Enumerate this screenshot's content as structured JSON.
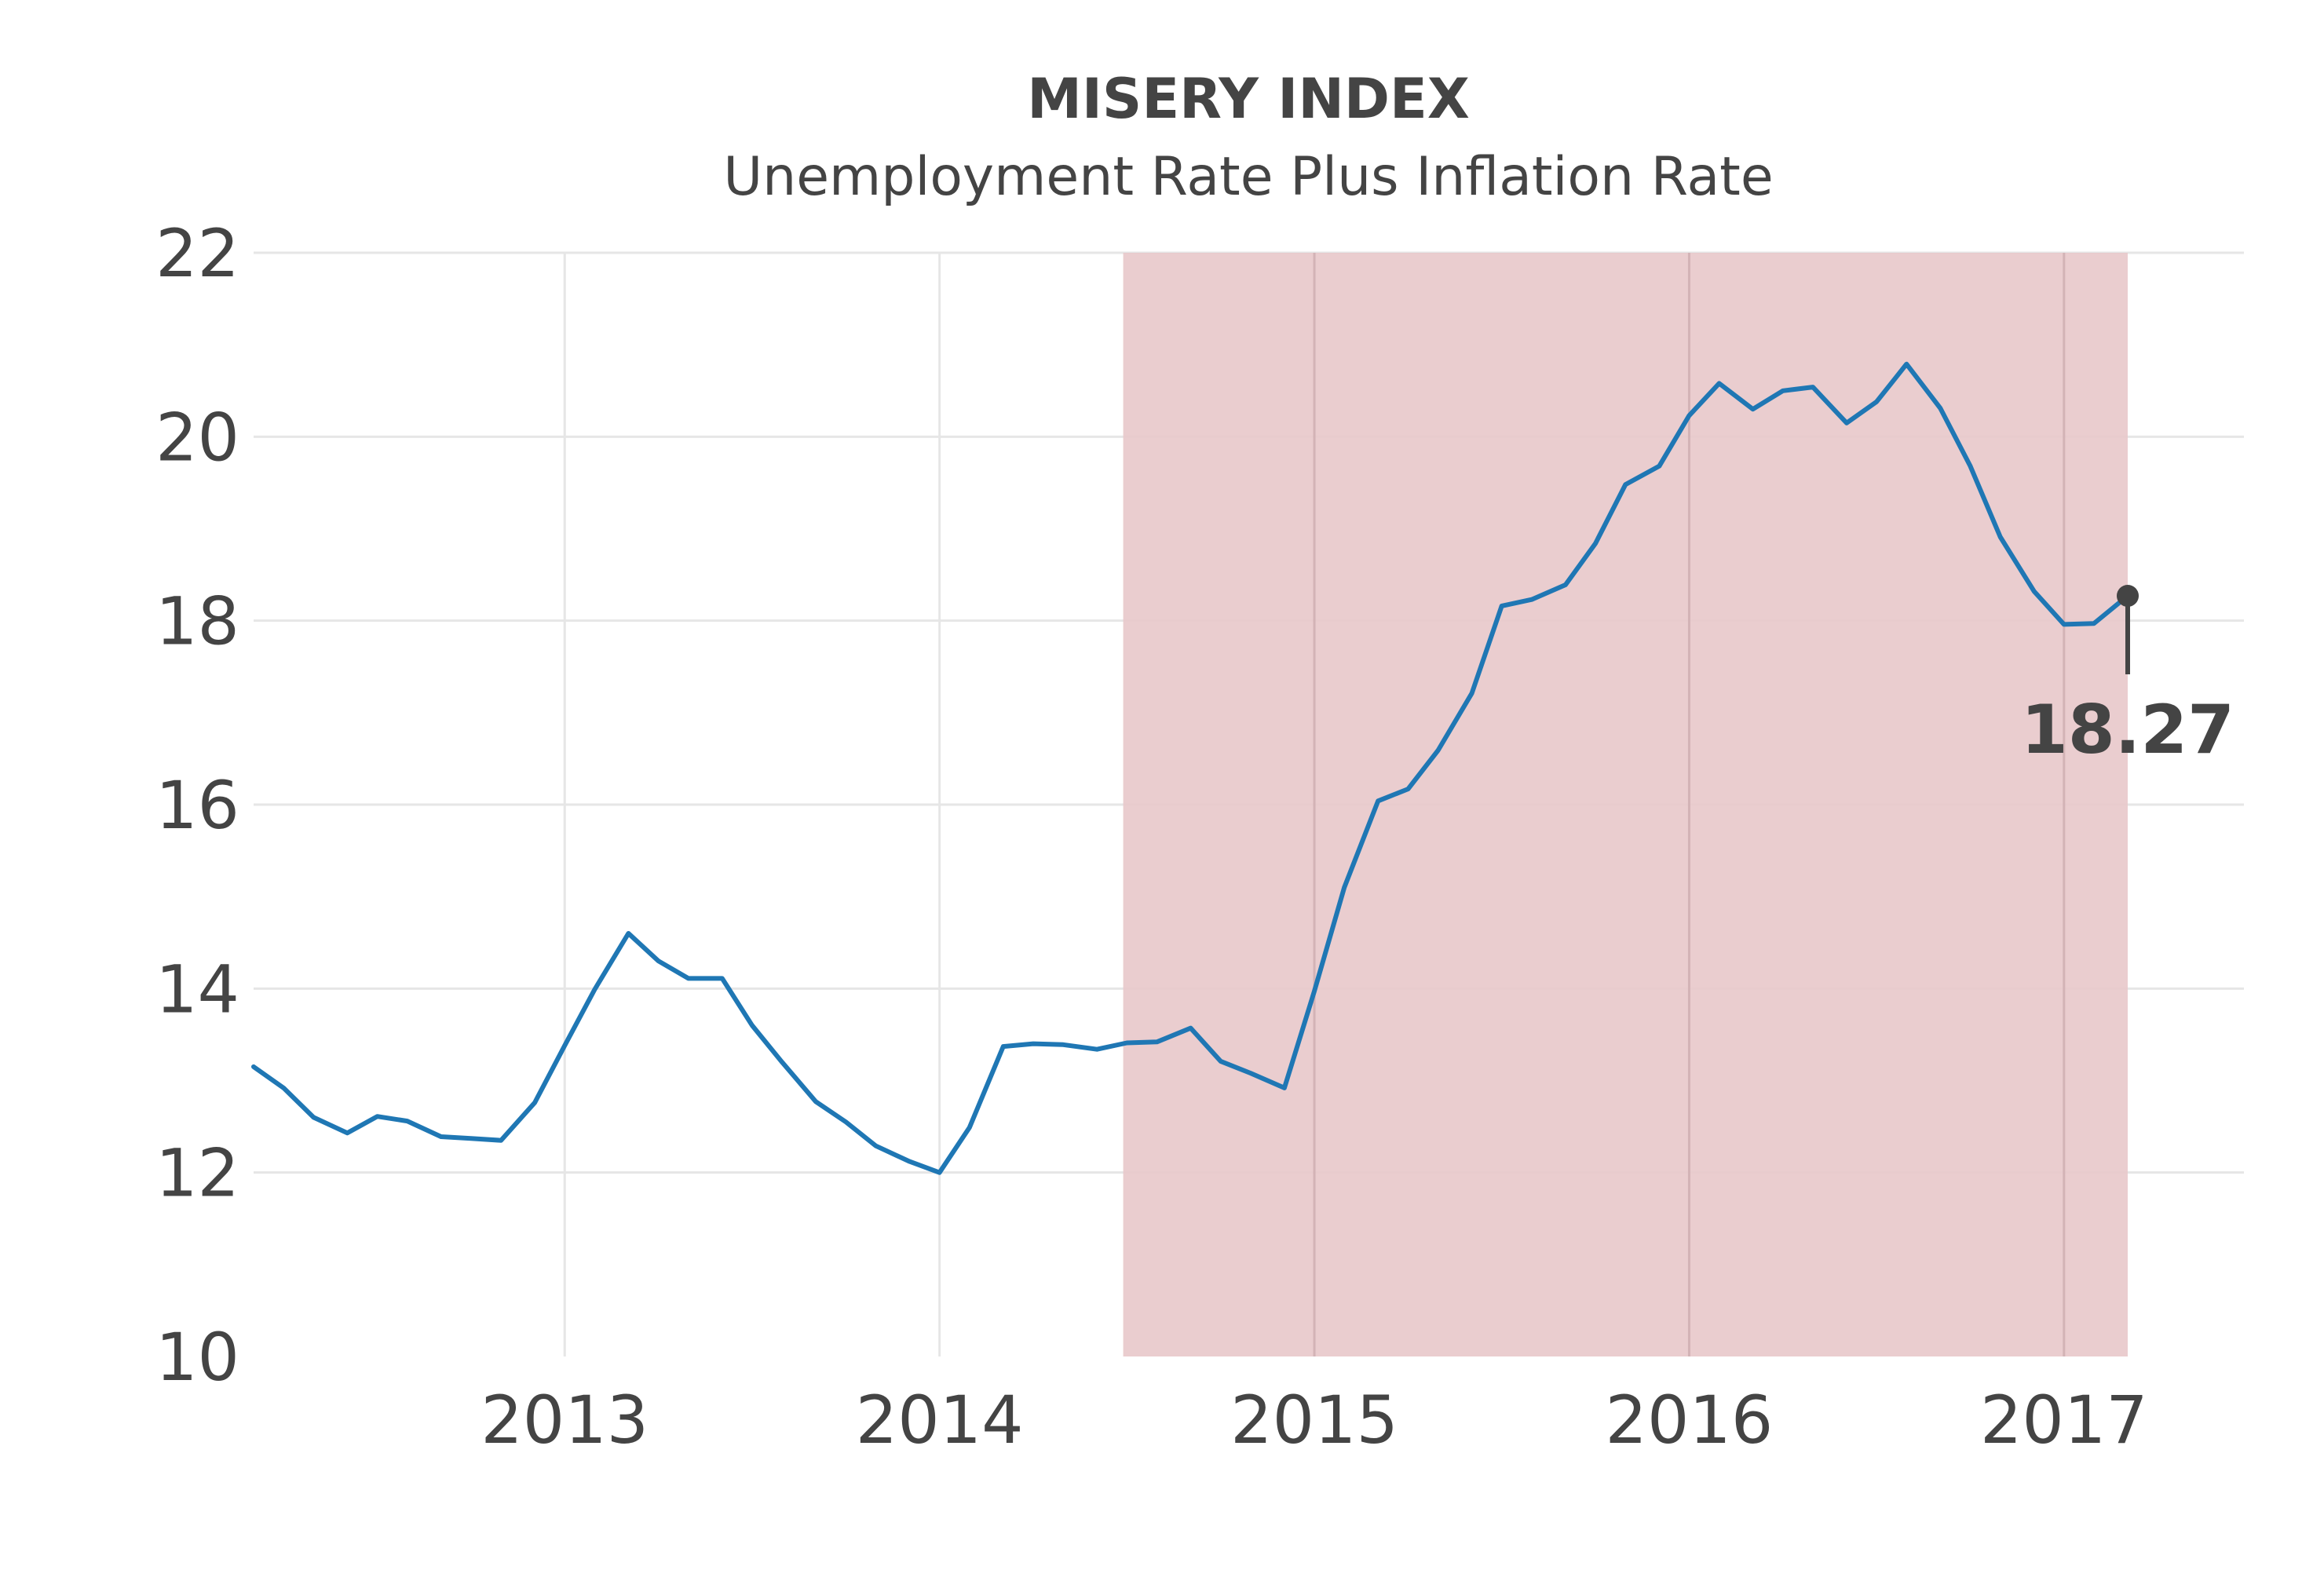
{
  "chart_data": {
    "type": "line",
    "title": "MISERY INDEX",
    "subtitle": "Unemployment Rate Plus Inflation Rate",
    "xlabel": "",
    "ylabel": "",
    "xlim": [
      2012.17,
      2017.48
    ],
    "ylim": [
      10,
      22
    ],
    "x_ticks": [
      2013,
      2014,
      2015,
      2016,
      2017
    ],
    "x_tick_labels": [
      "2013",
      "2014",
      "2015",
      "2016",
      "2017"
    ],
    "y_ticks": [
      10,
      12,
      14,
      16,
      18,
      20,
      22
    ],
    "y_tick_labels": [
      "10",
      "12",
      "14",
      "16",
      "18",
      "20",
      "22"
    ],
    "grid": true,
    "legend": "none",
    "colors": {
      "line": "#1f77b4",
      "shade": "#e8c9cb",
      "annotation": "#444444",
      "grid": "#e6e6e6",
      "text": "#444444"
    },
    "shaded_region": {
      "x_start": 2014.49,
      "x_end": 2017.17
    },
    "series": [
      {
        "x": [
          2012.17,
          2012.25,
          2012.33,
          2012.42,
          2012.5,
          2012.58,
          2012.67,
          2012.75,
          2012.83,
          2012.92,
          2013.0,
          2013.08,
          2013.17,
          2013.25,
          2013.33,
          2013.42,
          2013.5,
          2013.58,
          2013.67,
          2013.75,
          2013.83,
          2013.92,
          2014.0,
          2014.08,
          2014.17,
          2014.25,
          2014.33,
          2014.42,
          2014.5,
          2014.58,
          2014.67,
          2014.75,
          2014.83,
          2014.92,
          2015.0,
          2015.08,
          2015.17,
          2015.25,
          2015.33,
          2015.42,
          2015.5,
          2015.58,
          2015.67,
          2015.75,
          2015.83,
          2015.92,
          2016.0,
          2016.08,
          2016.17,
          2016.25,
          2016.33,
          2016.42,
          2016.5,
          2016.58,
          2016.67,
          2016.75,
          2016.83,
          2016.92,
          2017.0,
          2017.08,
          2017.17
        ],
        "values": [
          13.15,
          12.92,
          12.6,
          12.43,
          12.61,
          12.56,
          12.39,
          12.37,
          12.35,
          12.76,
          13.38,
          13.99,
          14.6,
          14.3,
          14.11,
          14.11,
          13.6,
          13.2,
          12.77,
          12.55,
          12.29,
          12.12,
          12.0,
          12.49,
          13.37,
          13.4,
          13.39,
          13.34,
          13.41,
          13.42,
          13.57,
          13.21,
          13.08,
          12.92,
          13.97,
          15.1,
          16.04,
          16.17,
          16.59,
          17.21,
          18.16,
          18.23,
          18.39,
          18.84,
          19.48,
          19.68,
          20.23,
          20.58,
          20.3,
          20.5,
          20.54,
          20.15,
          20.38,
          20.79,
          20.31,
          19.68,
          18.91,
          18.32,
          17.96,
          17.97,
          18.27
        ]
      }
    ],
    "annotation": {
      "x": 2017.17,
      "y": 18.27,
      "text": "18.27"
    }
  }
}
